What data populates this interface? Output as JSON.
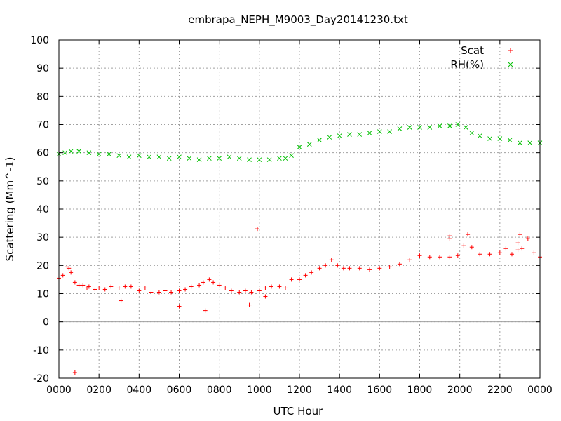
{
  "chart_data": {
    "type": "scatter",
    "title": "embrapa_NEPH_M9003_Day20141230.txt",
    "xlabel": "UTC Hour",
    "ylabel": "Scattering (Mm^-1)",
    "xlim": [
      0,
      24
    ],
    "ylim": [
      -20,
      100
    ],
    "x_ticks": [
      0,
      2,
      4,
      6,
      8,
      10,
      12,
      14,
      16,
      18,
      20,
      22,
      24
    ],
    "x_tick_labels": [
      "0000",
      "0200",
      "0400",
      "0600",
      "0800",
      "1000",
      "1200",
      "1400",
      "1600",
      "1800",
      "2000",
      "2200",
      "0000"
    ],
    "y_ticks": [
      -20,
      -10,
      0,
      10,
      20,
      30,
      40,
      50,
      60,
      70,
      80,
      90,
      100
    ],
    "y_tick_labels": [
      "-20",
      "-10",
      "0",
      "10",
      "20",
      "30",
      "40",
      "50",
      "60",
      "70",
      "80",
      "90",
      "100"
    ],
    "grid": true,
    "zero_line": true,
    "legend_position": "top-right",
    "series": [
      {
        "name": "Scat",
        "marker": "+",
        "color": "#ff0000",
        "x": [
          0.0,
          0.2,
          0.4,
          0.5,
          0.6,
          0.8,
          1.0,
          1.2,
          1.5,
          1.8,
          2.0,
          2.3,
          2.6,
          3.0,
          3.3,
          3.6,
          4.0,
          4.3,
          4.6,
          5.0,
          5.3,
          5.6,
          6.0,
          6.3,
          6.6,
          7.0,
          7.2,
          7.5,
          7.7,
          8.0,
          8.3,
          8.6,
          9.0,
          9.3,
          9.6,
          10.0,
          10.3,
          10.6,
          11.0,
          11.3,
          11.6,
          12.0,
          12.3,
          12.6,
          13.0,
          13.3,
          13.6,
          13.9,
          14.2,
          14.5,
          15.0,
          15.5,
          16.0,
          16.5,
          17.0,
          17.5,
          18.0,
          18.5,
          19.0,
          19.5,
          19.9,
          20.2,
          20.4,
          20.6,
          21.0,
          21.5,
          22.0,
          22.3,
          22.6,
          22.9,
          23.1,
          23.4,
          23.7,
          24.0,
          0.8,
          3.1,
          6.0,
          7.3,
          9.5,
          9.9,
          10.3,
          19.5,
          19.5,
          23.0,
          22.9,
          1.4
        ],
        "y": [
          15.5,
          16.5,
          19.5,
          19.0,
          17.5,
          14.0,
          13.0,
          13.0,
          12.5,
          11.5,
          12.0,
          11.5,
          12.5,
          12.0,
          12.5,
          12.5,
          11.0,
          12.0,
          10.5,
          10.5,
          11.0,
          10.5,
          11.0,
          11.5,
          12.5,
          13.0,
          14.0,
          15.0,
          14.0,
          13.0,
          12.0,
          11.0,
          10.5,
          11.0,
          10.5,
          11.0,
          12.0,
          12.5,
          12.5,
          12.0,
          15.0,
          15.0,
          16.5,
          17.5,
          19.0,
          20.0,
          22.0,
          20.0,
          19.0,
          19.0,
          19.0,
          18.5,
          19.0,
          19.5,
          20.5,
          22.0,
          23.5,
          23.0,
          23.0,
          23.0,
          23.5,
          27.0,
          31.0,
          26.5,
          24.0,
          24.0,
          24.5,
          26.0,
          24.0,
          25.5,
          26.0,
          29.5,
          24.5,
          23.0,
          -18.0,
          7.5,
          5.5,
          4.0,
          6.0,
          33.0,
          9.0,
          30.5,
          29.5,
          31.0,
          28.0,
          12.0
        ]
      },
      {
        "name": "RH(%)",
        "marker": "x",
        "color": "#00c000",
        "x": [
          0.0,
          0.3,
          0.6,
          1.0,
          1.5,
          2.0,
          2.5,
          3.0,
          3.5,
          4.0,
          4.5,
          5.0,
          5.5,
          6.0,
          6.5,
          7.0,
          7.5,
          8.0,
          8.5,
          9.0,
          9.5,
          10.0,
          10.5,
          11.0,
          11.3,
          11.6,
          12.0,
          12.5,
          13.0,
          13.5,
          14.0,
          14.5,
          15.0,
          15.5,
          16.0,
          16.5,
          17.0,
          17.5,
          18.0,
          18.5,
          19.0,
          19.5,
          19.9,
          20.3,
          20.6,
          21.0,
          21.5,
          22.0,
          22.5,
          23.0,
          23.5,
          24.0
        ],
        "y": [
          59.5,
          60.0,
          60.5,
          60.5,
          60.0,
          59.5,
          59.5,
          59.0,
          58.5,
          59.0,
          58.5,
          58.5,
          58.0,
          58.5,
          58.0,
          57.5,
          58.0,
          58.0,
          58.5,
          58.0,
          57.5,
          57.5,
          57.5,
          58.0,
          58.0,
          59.0,
          62.0,
          63.0,
          64.5,
          65.5,
          66.0,
          66.5,
          66.5,
          67.0,
          67.5,
          67.5,
          68.5,
          69.0,
          69.0,
          69.0,
          69.5,
          69.5,
          70.0,
          69.0,
          67.0,
          66.0,
          65.0,
          65.0,
          64.5,
          63.5,
          63.5,
          63.5
        ]
      }
    ]
  }
}
